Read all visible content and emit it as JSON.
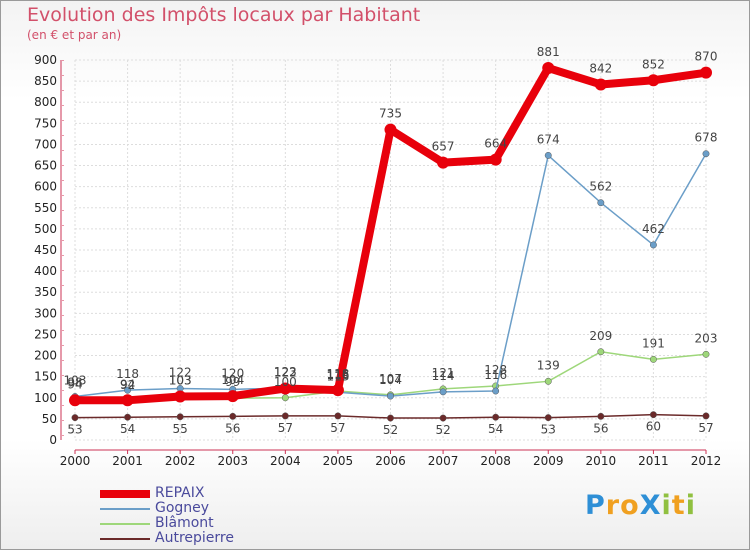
{
  "chart_data": {
    "type": "line",
    "title": "Evolution des Impôts locaux par Habitant",
    "subtitle": "(en € et par an)",
    "x": [
      "2000",
      "2001",
      "2002",
      "2003",
      "2004",
      "2005",
      "2006",
      "2007",
      "2008",
      "2009",
      "2010",
      "2011",
      "2012"
    ],
    "ylim": [
      0,
      900
    ],
    "yticks": [
      0,
      50,
      100,
      150,
      200,
      250,
      300,
      350,
      400,
      450,
      500,
      550,
      600,
      650,
      700,
      750,
      800,
      850,
      900
    ],
    "series": [
      {
        "name": "REPAIX",
        "color": "#e8000b",
        "values": [
          94,
          94,
          103,
          104,
          122,
          118,
          735,
          657,
          664,
          881,
          842,
          852,
          870
        ],
        "labels": [
          "94",
          "94",
          "103",
          "104",
          "122",
          "118",
          "735",
          "657",
          "664",
          "881",
          "842",
          "852",
          "870"
        ]
      },
      {
        "name": "Gogney",
        "color": "#6b9ec8",
        "values": [
          103,
          118,
          122,
          120,
          123,
          113,
          104,
          114,
          116,
          674,
          562,
          462,
          678
        ],
        "labels": [
          "103",
          "118",
          "122",
          "120",
          "123",
          "113",
          "104",
          "114",
          "116",
          "674",
          "562",
          "462",
          "678"
        ]
      },
      {
        "name": "Blâmont",
        "color": "#9ed77a",
        "values": [
          98,
          92,
          103,
          99,
          100,
          116,
          107,
          121,
          128,
          139,
          209,
          191,
          203
        ],
        "labels": [
          "98",
          "92",
          "103",
          "99",
          "100",
          "116",
          "107",
          "121",
          "128",
          "139",
          "209",
          "191",
          "203"
        ]
      },
      {
        "name": "Autrepierre",
        "color": "#6b2a2a",
        "values": [
          53,
          54,
          55,
          56,
          57,
          57,
          52,
          52,
          54,
          53,
          56,
          60,
          57
        ],
        "labels": [
          "53",
          "54",
          "55",
          "56",
          "57",
          "57",
          "52",
          "52",
          "54",
          "53",
          "56",
          "60",
          "57"
        ]
      }
    ]
  },
  "logo": {
    "text": "ProXiti",
    "letters": [
      "P",
      "r",
      "o",
      "X",
      "i",
      "t",
      "i"
    ],
    "colors": [
      "#2e8fd6",
      "#f0a020",
      "#f0a020",
      "#2e8fd6",
      "#90c040",
      "#f0a020",
      "#90c040"
    ]
  }
}
